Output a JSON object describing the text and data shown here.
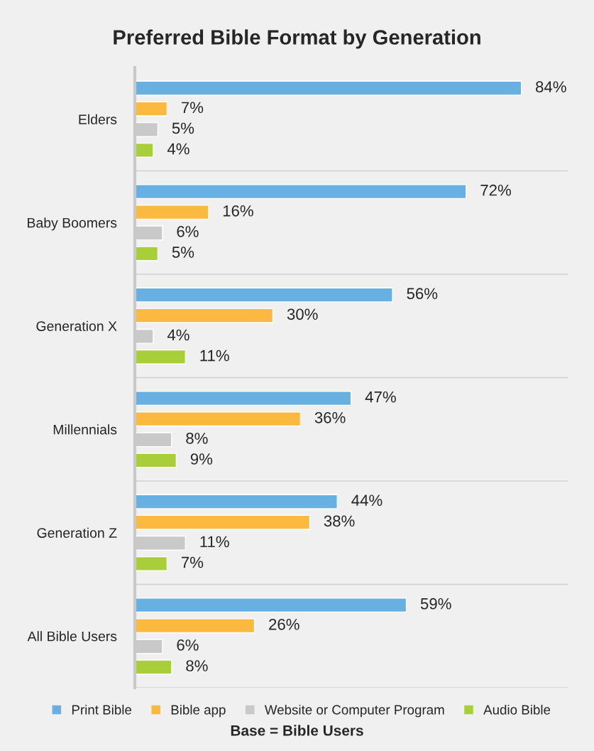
{
  "chart_data": {
    "type": "bar",
    "orientation": "horizontal",
    "title": "Preferred Bible Format by Generation",
    "categories": [
      "Elders",
      "Baby Boomers",
      "Generation X",
      "Millennials",
      "Generation Z",
      "All Bible Users"
    ],
    "series": [
      {
        "name": "Print Bible",
        "color": "#68b0e1",
        "values": [
          84,
          72,
          56,
          47,
          44,
          59
        ],
        "value_labels": [
          "84%",
          "72%",
          "56%",
          "47%",
          "44%",
          "59%"
        ]
      },
      {
        "name": "Bible app",
        "color": "#fbba3f",
        "values": [
          7,
          16,
          30,
          36,
          38,
          26
        ],
        "value_labels": [
          "7%",
          "16%",
          "30%",
          "36%",
          "38%",
          "26%"
        ]
      },
      {
        "name": "Website or Computer Program",
        "color": "#c9c9c9",
        "values": [
          5,
          6,
          4,
          8,
          11,
          6
        ],
        "value_labels": [
          "5%",
          "6%",
          "4%",
          "8%",
          "11%",
          "6%"
        ]
      },
      {
        "name": "Audio Bible",
        "color": "#a8cf3a",
        "values": [
          4,
          5,
          11,
          9,
          7,
          8
        ],
        "value_labels": [
          "4%",
          "5%",
          "11%",
          "9%",
          "7%",
          "8%"
        ]
      }
    ],
    "grid": "y",
    "legend": "bottom",
    "tick_labels": "y",
    "annotations": [
      "Base = Bible Users"
    ]
  }
}
